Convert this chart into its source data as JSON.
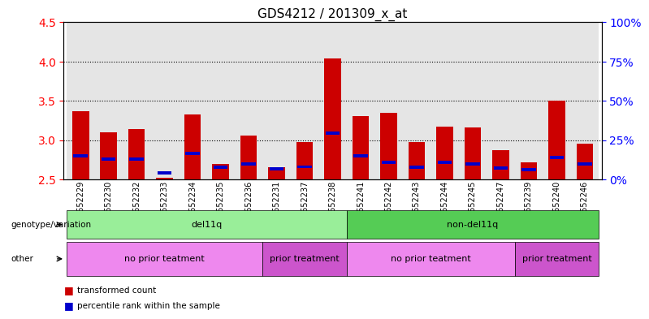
{
  "title": "GDS4212 / 201309_x_at",
  "samples": [
    "GSM652229",
    "GSM652230",
    "GSM652232",
    "GSM652233",
    "GSM652234",
    "GSM652235",
    "GSM652236",
    "GSM652231",
    "GSM652237",
    "GSM652238",
    "GSM652241",
    "GSM652242",
    "GSM652243",
    "GSM652244",
    "GSM652245",
    "GSM652247",
    "GSM652239",
    "GSM652240",
    "GSM652246"
  ],
  "red_values": [
    3.37,
    3.1,
    3.14,
    2.52,
    3.32,
    2.7,
    3.06,
    2.65,
    2.97,
    4.04,
    3.3,
    3.35,
    2.97,
    3.17,
    3.16,
    2.87,
    2.72,
    3.5,
    2.95
  ],
  "blue_values": [
    2.8,
    2.76,
    2.76,
    2.58,
    2.83,
    2.65,
    2.7,
    2.63,
    2.66,
    3.09,
    2.8,
    2.72,
    2.65,
    2.72,
    2.7,
    2.64,
    2.62,
    2.78,
    2.7
  ],
  "ylim_left": [
    2.5,
    4.5
  ],
  "ylim_right": [
    0,
    100
  ],
  "yticks_left": [
    2.5,
    3.0,
    3.5,
    4.0,
    4.5
  ],
  "yticks_right": [
    0,
    25,
    50,
    75,
    100
  ],
  "ytick_labels_right": [
    "0%",
    "25%",
    "50%",
    "75%",
    "100%"
  ],
  "grid_ticks": [
    3.0,
    3.5,
    4.0
  ],
  "bar_width": 0.6,
  "red_color": "#cc0000",
  "blue_color": "#0000cc",
  "groups": {
    "genotype": [
      {
        "label": "del11q",
        "start": 0,
        "end": 9,
        "color": "#99ee99"
      },
      {
        "label": "non-del11q",
        "start": 10,
        "end": 18,
        "color": "#55cc55"
      }
    ],
    "other": [
      {
        "label": "no prior teatment",
        "start": 0,
        "end": 6,
        "color": "#ee88ee"
      },
      {
        "label": "prior treatment",
        "start": 7,
        "end": 9,
        "color": "#cc55cc"
      },
      {
        "label": "no prior teatment",
        "start": 10,
        "end": 15,
        "color": "#ee88ee"
      },
      {
        "label": "prior treatment",
        "start": 16,
        "end": 18,
        "color": "#cc55cc"
      }
    ]
  },
  "legend_items": [
    {
      "label": "transformed count",
      "color": "#cc0000"
    },
    {
      "label": "percentile rank within the sample",
      "color": "#0000cc"
    }
  ],
  "background_color": "#ffffff",
  "bar_bg_color": "#cccccc"
}
